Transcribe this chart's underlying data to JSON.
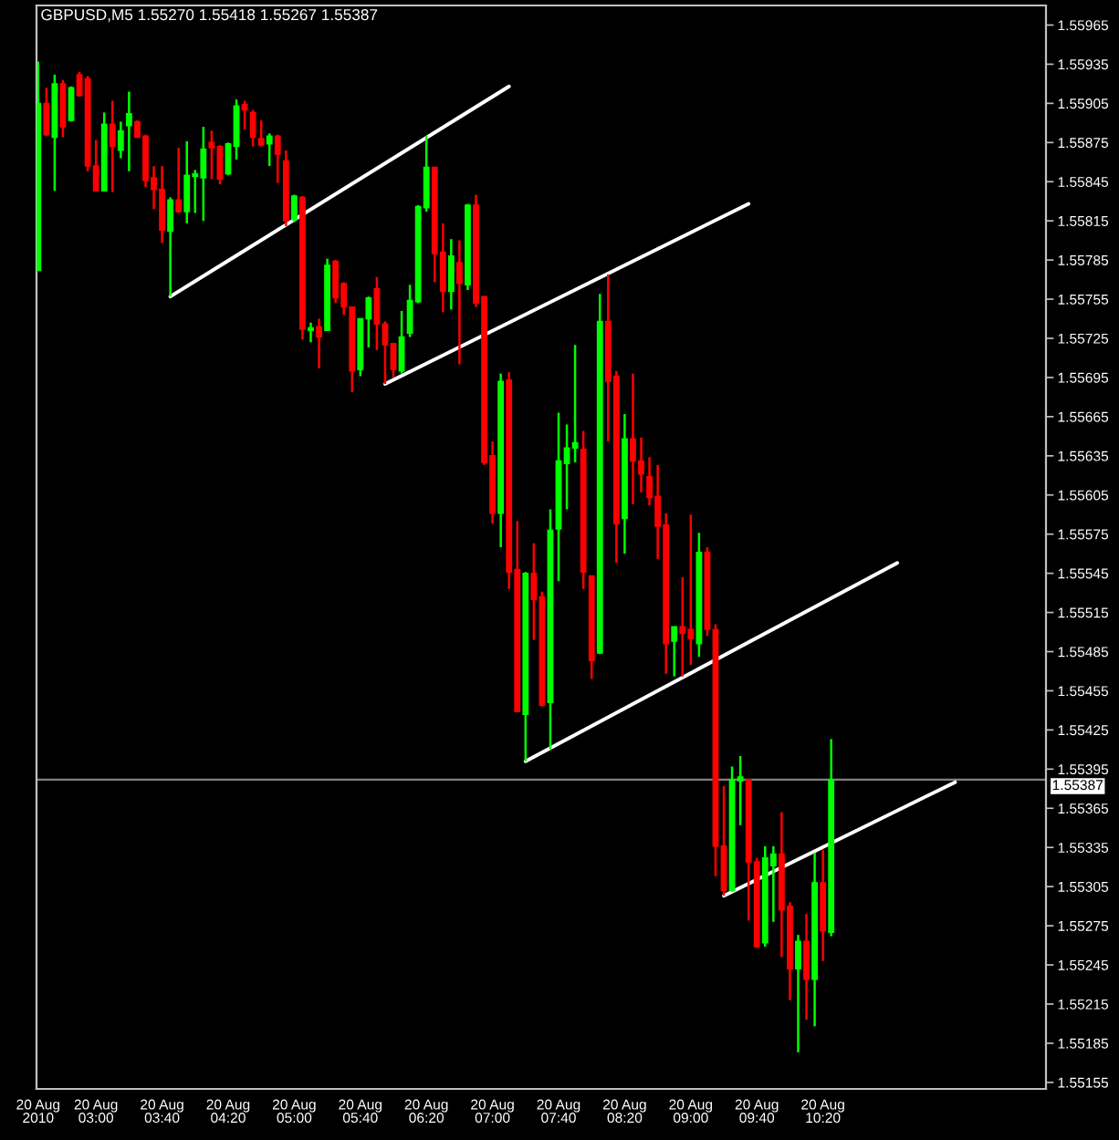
{
  "chart_data": {
    "type": "candlestick",
    "title": "GBPUSD,M5 1.55270 1.55418 1.55267 1.55387",
    "series": [
      {
        "type": "candlestick",
        "x": [
          "2010-08-20T02:25",
          "2010-08-20T02:30",
          "2010-08-20T02:35",
          "2010-08-20T02:40",
          "2010-08-20T02:45",
          "2010-08-20T02:50",
          "2010-08-20T02:55",
          "2010-08-20T03:00",
          "2010-08-20T03:05",
          "2010-08-20T03:10",
          "2010-08-20T03:15",
          "2010-08-20T03:20",
          "2010-08-20T03:25",
          "2010-08-20T03:30",
          "2010-08-20T03:35",
          "2010-08-20T03:40",
          "2010-08-20T03:45",
          "2010-08-20T03:50",
          "2010-08-20T03:55",
          "2010-08-20T04:00",
          "2010-08-20T04:05",
          "2010-08-20T04:10",
          "2010-08-20T04:15",
          "2010-08-20T04:20",
          "2010-08-20T04:25",
          "2010-08-20T04:30",
          "2010-08-20T04:35",
          "2010-08-20T04:40",
          "2010-08-20T04:45",
          "2010-08-20T04:50",
          "2010-08-20T04:55",
          "2010-08-20T05:00",
          "2010-08-20T05:05",
          "2010-08-20T05:10",
          "2010-08-20T05:15",
          "2010-08-20T05:20",
          "2010-08-20T05:25",
          "2010-08-20T05:30",
          "2010-08-20T05:35",
          "2010-08-20T05:40",
          "2010-08-20T05:45",
          "2010-08-20T05:50",
          "2010-08-20T05:55",
          "2010-08-20T06:00",
          "2010-08-20T06:05",
          "2010-08-20T06:10",
          "2010-08-20T06:15",
          "2010-08-20T06:20",
          "2010-08-20T06:25",
          "2010-08-20T06:30",
          "2010-08-20T06:35",
          "2010-08-20T06:40",
          "2010-08-20T06:45",
          "2010-08-20T06:50",
          "2010-08-20T06:55",
          "2010-08-20T07:00",
          "2010-08-20T07:05",
          "2010-08-20T07:10",
          "2010-08-20T07:15",
          "2010-08-20T07:20",
          "2010-08-20T07:25",
          "2010-08-20T07:30",
          "2010-08-20T07:35",
          "2010-08-20T07:40",
          "2010-08-20T07:45",
          "2010-08-20T07:50",
          "2010-08-20T07:55",
          "2010-08-20T08:00",
          "2010-08-20T08:05",
          "2010-08-20T08:10",
          "2010-08-20T08:15",
          "2010-08-20T08:20",
          "2010-08-20T08:25",
          "2010-08-20T08:30",
          "2010-08-20T08:35",
          "2010-08-20T08:40",
          "2010-08-20T08:45",
          "2010-08-20T08:50",
          "2010-08-20T08:55",
          "2010-08-20T09:00",
          "2010-08-20T09:05",
          "2010-08-20T09:10",
          "2010-08-20T09:15",
          "2010-08-20T09:20",
          "2010-08-20T09:25",
          "2010-08-20T09:30",
          "2010-08-20T09:35",
          "2010-08-20T09:40",
          "2010-08-20T09:45",
          "2010-08-20T09:50",
          "2010-08-20T09:55",
          "2010-08-20T10:00",
          "2010-08-20T10:05",
          "2010-08-20T10:10",
          "2010-08-20T10:15",
          "2010-08-20T10:20",
          "2010-08-20T10:25"
        ],
        "ohlc": [
          [
            1.55777,
            1.55937,
            1.55777,
            1.55905
          ],
          [
            1.55905,
            1.55917,
            1.5588,
            1.55881
          ],
          [
            1.55879,
            1.55927,
            1.55838,
            1.5592
          ],
          [
            1.5592,
            1.55923,
            1.55879,
            1.55887
          ],
          [
            1.55892,
            1.55918,
            1.55891,
            1.55917
          ],
          [
            1.55927,
            1.55929,
            1.5591,
            1.55911
          ],
          [
            1.55924,
            1.55926,
            1.55853,
            1.55857
          ],
          [
            1.55857,
            1.55877,
            1.55838,
            1.55838
          ],
          [
            1.55838,
            1.55898,
            1.55838,
            1.55889
          ],
          [
            1.55889,
            1.55907,
            1.55837,
            1.55872
          ],
          [
            1.55869,
            1.55891,
            1.55863,
            1.55884
          ],
          [
            1.55888,
            1.55914,
            1.55853,
            1.55897
          ],
          [
            1.55891,
            1.55892,
            1.55879,
            1.55879
          ],
          [
            1.5588,
            1.55881,
            1.55841,
            1.55846
          ],
          [
            1.55848,
            1.55857,
            1.55824,
            1.55839
          ],
          [
            1.55839,
            1.55857,
            1.55798,
            1.55808
          ],
          [
            1.55807,
            1.55833,
            1.55757,
            1.55831
          ],
          [
            1.55831,
            1.55871,
            1.55821,
            1.55822
          ],
          [
            1.55822,
            1.55876,
            1.55813,
            1.5585
          ],
          [
            1.55849,
            1.55854,
            1.55821,
            1.55851
          ],
          [
            1.55848,
            1.55887,
            1.55815,
            1.5587
          ],
          [
            1.55875,
            1.55884,
            1.55847,
            1.55871
          ],
          [
            1.55872,
            1.55873,
            1.55843,
            1.55847
          ],
          [
            1.55851,
            1.55875,
            1.5585,
            1.55874
          ],
          [
            1.55872,
            1.55908,
            1.55862,
            1.55903
          ],
          [
            1.55904,
            1.55907,
            1.55885,
            1.559
          ],
          [
            1.55898,
            1.559,
            1.55872,
            1.55879
          ],
          [
            1.55878,
            1.55892,
            1.55872,
            1.55873
          ],
          [
            1.55874,
            1.55882,
            1.55857,
            1.5588
          ],
          [
            1.5588,
            1.55881,
            1.55844,
            1.55866
          ],
          [
            1.55861,
            1.55869,
            1.55811,
            1.55815
          ],
          [
            1.55816,
            1.55835,
            1.55814,
            1.55834
          ],
          [
            1.55833,
            1.55834,
            1.55724,
            1.55732
          ],
          [
            1.55731,
            1.55737,
            1.55722,
            1.55733
          ],
          [
            1.55734,
            1.5574,
            1.55702,
            1.55726
          ],
          [
            1.55731,
            1.55786,
            1.55731,
            1.55781
          ],
          [
            1.55784,
            1.55785,
            1.55752,
            1.55756
          ],
          [
            1.55767,
            1.55768,
            1.55743,
            1.55749
          ],
          [
            1.55749,
            1.55749,
            1.55684,
            1.557
          ],
          [
            1.55701,
            1.5574,
            1.55696,
            1.5574
          ],
          [
            1.5574,
            1.55757,
            1.55718,
            1.55756
          ],
          [
            1.55763,
            1.55772,
            1.55716,
            1.55736
          ],
          [
            1.55736,
            1.55738,
            1.5569,
            1.5572
          ],
          [
            1.55721,
            1.55721,
            1.55695,
            1.55701
          ],
          [
            1.557,
            1.55746,
            1.55698,
            1.55726
          ],
          [
            1.55729,
            1.55766,
            1.55726,
            1.55754
          ],
          [
            1.55753,
            1.55827,
            1.55752,
            1.55826
          ],
          [
            1.55825,
            1.5588,
            1.55822,
            1.55856
          ],
          [
            1.55856,
            1.55856,
            1.55768,
            1.5579
          ],
          [
            1.55791,
            1.55813,
            1.55745,
            1.55761
          ],
          [
            1.55761,
            1.55801,
            1.55747,
            1.55788
          ],
          [
            1.55783,
            1.558,
            1.55705,
            1.55767
          ],
          [
            1.55766,
            1.55828,
            1.55762,
            1.55827
          ],
          [
            1.55827,
            1.55835,
            1.55749,
            1.55752
          ],
          [
            1.55757,
            1.55757,
            1.55628,
            1.5563
          ],
          [
            1.55635,
            1.55646,
            1.55583,
            1.55591
          ],
          [
            1.55591,
            1.55698,
            1.55565,
            1.55692
          ],
          [
            1.55693,
            1.55699,
            1.55533,
            1.55546
          ],
          [
            1.55548,
            1.55585,
            1.55439,
            1.55439
          ],
          [
            1.55437,
            1.55546,
            1.55401,
            1.55545
          ],
          [
            1.55545,
            1.55568,
            1.55494,
            1.55525
          ],
          [
            1.55527,
            1.55531,
            1.55443,
            1.55444
          ],
          [
            1.55446,
            1.55594,
            1.5541,
            1.55578
          ],
          [
            1.55579,
            1.55668,
            1.55539,
            1.55631
          ],
          [
            1.55629,
            1.55659,
            1.55594,
            1.55641
          ],
          [
            1.55641,
            1.5572,
            1.5563,
            1.55645
          ],
          [
            1.5564,
            1.55654,
            1.55533,
            1.55546
          ],
          [
            1.55543,
            1.55543,
            1.55464,
            1.55478
          ],
          [
            1.55484,
            1.55759,
            1.55483,
            1.55738
          ],
          [
            1.55738,
            1.55774,
            1.55646,
            1.55692
          ],
          [
            1.55696,
            1.557,
            1.55553,
            1.55583
          ],
          [
            1.55587,
            1.55667,
            1.5556,
            1.55648
          ],
          [
            1.55648,
            1.55698,
            1.55598,
            1.55631
          ],
          [
            1.55631,
            1.55649,
            1.55607,
            1.55621
          ],
          [
            1.55619,
            1.55634,
            1.55597,
            1.55603
          ],
          [
            1.55604,
            1.55628,
            1.55556,
            1.55581
          ],
          [
            1.55582,
            1.55591,
            1.55468,
            1.55491
          ],
          [
            1.55493,
            1.55504,
            1.55466,
            1.55504
          ],
          [
            1.55504,
            1.55542,
            1.55466,
            1.55499
          ],
          [
            1.55502,
            1.5559,
            1.55475,
            1.55495
          ],
          [
            1.55491,
            1.55576,
            1.55481,
            1.55561
          ],
          [
            1.55561,
            1.55565,
            1.55497,
            1.55502
          ],
          [
            1.55502,
            1.55506,
            1.55313,
            1.55336
          ],
          [
            1.55336,
            1.55382,
            1.55298,
            1.55302
          ],
          [
            1.55302,
            1.55397,
            1.55301,
            1.55387
          ],
          [
            1.55386,
            1.55405,
            1.55352,
            1.55389
          ],
          [
            1.55387,
            1.55387,
            1.55279,
            1.55324
          ],
          [
            1.55324,
            1.55327,
            1.55258,
            1.55259
          ],
          [
            1.55262,
            1.55336,
            1.55259,
            1.55327
          ],
          [
            1.55321,
            1.55336,
            1.55278,
            1.5533
          ],
          [
            1.5533,
            1.55362,
            1.55251,
            1.55287
          ],
          [
            1.5529,
            1.55293,
            1.55218,
            1.55242
          ],
          [
            1.55242,
            1.55268,
            1.55178,
            1.55263
          ],
          [
            1.55263,
            1.55284,
            1.55203,
            1.55234
          ],
          [
            1.55234,
            1.55331,
            1.55198,
            1.55308
          ],
          [
            1.55308,
            1.55333,
            1.55248,
            1.55271
          ],
          [
            1.5527,
            1.55418,
            1.55267,
            1.55387
          ]
        ],
        "colors": [
          "#00ff00",
          "#ff0000",
          "#00ff00",
          "#ff0000",
          "#00ff00",
          "#ff0000",
          "#ff0000",
          "#ff0000",
          "#00ff00",
          "#ff0000",
          "#00ff00",
          "#00ff00",
          "#ff0000",
          "#ff0000",
          "#ff0000",
          "#ff0000",
          "#00ff00",
          "#ff0000",
          "#00ff00",
          "#00ff00",
          "#00ff00",
          "#ff0000",
          "#ff0000",
          "#00ff00",
          "#00ff00",
          "#ff0000",
          "#ff0000",
          "#ff0000",
          "#00ff00",
          "#ff0000",
          "#ff0000",
          "#00ff00",
          "#ff0000",
          "#00ff00",
          "#ff0000",
          "#00ff00",
          "#ff0000",
          "#ff0000",
          "#ff0000",
          "#00ff00",
          "#00ff00",
          "#ff0000",
          "#ff0000",
          "#ff0000",
          "#00ff00",
          "#00ff00",
          "#00ff00",
          "#00ff00",
          "#ff0000",
          "#ff0000",
          "#00ff00",
          "#ff0000",
          "#00ff00",
          "#ff0000",
          "#ff0000",
          "#ff0000",
          "#00ff00",
          "#ff0000",
          "#ff0000",
          "#00ff00",
          "#ff0000",
          "#ff0000",
          "#00ff00",
          "#00ff00",
          "#00ff00",
          "#00ff00",
          "#ff0000",
          "#ff0000",
          "#00ff00",
          "#ff0000",
          "#ff0000",
          "#00ff00",
          "#ff0000",
          "#ff0000",
          "#ff0000",
          "#ff0000",
          "#ff0000",
          "#00ff00",
          "#ff0000",
          "#ff0000",
          "#00ff00",
          "#ff0000",
          "#ff0000",
          "#ff0000",
          "#00ff00",
          "#00ff00",
          "#ff0000",
          "#ff0000",
          "#00ff00",
          "#00ff00",
          "#ff0000",
          "#ff0000",
          "#00ff00",
          "#ff0000",
          "#00ff00",
          "#ff0000",
          "#00ff00"
        ]
      },
      {
        "type": "line",
        "color": "#ffffff",
        "x": [
          "2010-08-20T03:45",
          "2010-08-20T07:10"
        ],
        "values": [
          1.55757,
          1.55918
        ]
      },
      {
        "type": "line",
        "color": "#ffffff",
        "x": [
          "2010-08-20T05:55",
          "2010-08-20T09:35"
        ],
        "values": [
          1.5569,
          1.55828
        ]
      },
      {
        "type": "line",
        "color": "#ffffff",
        "x": [
          "2010-08-20T07:20",
          "2010-08-20T11:05"
        ],
        "values": [
          1.55401,
          1.55553
        ]
      },
      {
        "type": "line",
        "color": "#ffffff",
        "x": [
          "2010-08-20T09:20",
          "2010-08-20T11:40"
        ],
        "values": [
          1.55298,
          1.55385
        ]
      }
    ],
    "xlim": [
      "2010-08-20T02:24",
      "2010-08-20T12:35"
    ],
    "ylim": [
      1.5515,
      1.5598
    ],
    "xticks": [
      {
        "value": "2010-08-20T02:25",
        "label": "20 Aug 2010"
      },
      {
        "value": "2010-08-20T03:00",
        "label": "20 Aug 03:00"
      },
      {
        "value": "2010-08-20T03:40",
        "label": "20 Aug 03:40"
      },
      {
        "value": "2010-08-20T04:20",
        "label": "20 Aug 04:20"
      },
      {
        "value": "2010-08-20T05:00",
        "label": "20 Aug 05:00"
      },
      {
        "value": "2010-08-20T05:40",
        "label": "20 Aug 05:40"
      },
      {
        "value": "2010-08-20T06:20",
        "label": "20 Aug 06:20"
      },
      {
        "value": "2010-08-20T07:00",
        "label": "20 Aug 07:00"
      },
      {
        "value": "2010-08-20T07:40",
        "label": "20 Aug 07:40"
      },
      {
        "value": "2010-08-20T08:20",
        "label": "20 Aug 08:20"
      },
      {
        "value": "2010-08-20T09:00",
        "label": "20 Aug 09:00"
      },
      {
        "value": "2010-08-20T09:40",
        "label": "20 Aug 09:40"
      },
      {
        "value": "2010-08-20T10:20",
        "label": "20 Aug 10:20"
      }
    ],
    "yticks": [
      1.55965,
      1.55935,
      1.55905,
      1.55875,
      1.55845,
      1.55815,
      1.55785,
      1.55755,
      1.55725,
      1.55695,
      1.55665,
      1.55635,
      1.55605,
      1.55575,
      1.55545,
      1.55515,
      1.55485,
      1.55455,
      1.55425,
      1.55395,
      1.55365,
      1.55335,
      1.55305,
      1.55275,
      1.55245,
      1.55215,
      1.55185,
      1.55155
    ],
    "ref_lines": [
      {
        "axis": "y",
        "value": 1.55387,
        "label": "1.55387",
        "color": "#808080"
      }
    ]
  }
}
